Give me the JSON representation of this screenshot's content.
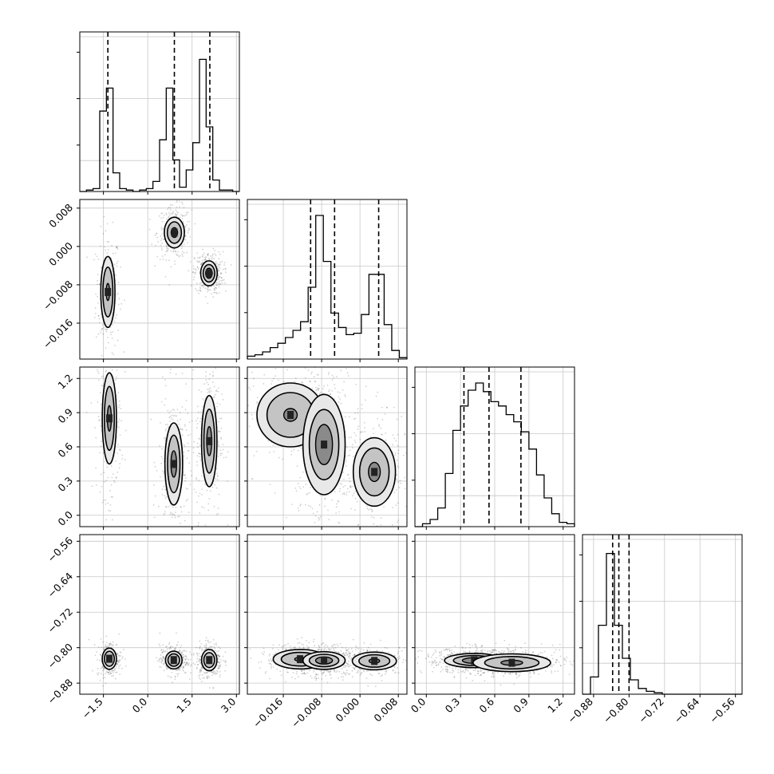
{
  "chart_data": {
    "type": "corner",
    "title": "",
    "parameters": [
      {
        "label": "",
        "range": [
          -2.3,
          3.1
        ],
        "ticks": [
          -1.5,
          0.0,
          1.5,
          3.0
        ],
        "tick_labels": [
          "−1.5",
          "0.0",
          "1.5",
          "3.0"
        ],
        "quantiles": [
          -1.35,
          0.9,
          2.1
        ]
      },
      {
        "label": "",
        "range": [
          -0.0235,
          0.0098
        ],
        "ticks": [
          -0.016,
          -0.008,
          0.0,
          0.008
        ],
        "tick_labels": [
          "−0.016",
          "−0.008",
          "0.000",
          "0.008"
        ],
        "quantiles": [
          -0.0103,
          -0.0053,
          0.0039
        ]
      },
      {
        "label": "",
        "range": [
          -0.1,
          1.3
        ],
        "ticks": [
          0.0,
          0.3,
          0.6,
          0.9,
          1.2
        ],
        "tick_labels": [
          "0.0",
          "0.3",
          "0.6",
          "0.9",
          "1.2"
        ],
        "quantiles": [
          0.33,
          0.55,
          0.83
        ]
      },
      {
        "label": "",
        "range": [
          -0.905,
          -0.545
        ],
        "ticks": [
          -0.88,
          -0.8,
          -0.72,
          -0.64,
          -0.56
        ],
        "tick_labels": [
          "−0.88",
          "−0.80",
          "−0.72",
          "−0.64",
          "−0.56"
        ],
        "quantiles": [
          -0.837,
          -0.823,
          -0.8
        ]
      }
    ],
    "histograms": [
      {
        "parameter": 0,
        "bin_values": [
          0,
          0.01,
          0.02,
          0.56,
          0.72,
          0.13,
          0.02,
          0.01,
          0,
          0.01,
          0.02,
          0.07,
          0.36,
          0.72,
          0.22,
          0.03,
          0.15,
          0.34,
          0.92,
          0.45,
          0.08,
          0.01,
          0.01,
          0
        ]
      },
      {
        "parameter": 1,
        "bin_values": [
          0.02,
          0.03,
          0.05,
          0.08,
          0.11,
          0.15,
          0.2,
          0.26,
          0.5,
          1.0,
          0.68,
          0.32,
          0.22,
          0.17,
          0.18,
          0.31,
          0.59,
          0.59,
          0.24,
          0.06,
          0.01
        ]
      },
      {
        "parameter": 2,
        "bin_values": [
          0.0,
          0.02,
          0.05,
          0.13,
          0.37,
          0.67,
          0.84,
          0.95,
          1.0,
          0.94,
          0.87,
          0.84,
          0.78,
          0.73,
          0.66,
          0.54,
          0.36,
          0.2,
          0.09,
          0.03,
          0.02
        ]
      },
      {
        "parameter": 3,
        "bin_values": [
          0,
          0.12,
          0.48,
          0.98,
          0.48,
          0.25,
          0.1,
          0.04,
          0.02,
          0.01,
          0,
          0,
          0,
          0,
          0,
          0,
          0,
          0,
          0,
          0
        ]
      }
    ],
    "density_clusters": [
      {
        "x": 0,
        "y": 1,
        "modes": [
          {
            "mx": -1.35,
            "my": -0.0095,
            "sx": 0.12,
            "sy": 0.0037,
            "w": 0.6
          },
          {
            "mx": 0.9,
            "my": 0.0029,
            "sx": 0.17,
            "sy": 0.0016,
            "w": 0.8
          },
          {
            "mx": 2.07,
            "my": -0.0056,
            "sx": 0.14,
            "sy": 0.0013,
            "w": 1.0
          }
        ]
      },
      {
        "x": 0,
        "y": 2,
        "modes": [
          {
            "mx": -1.3,
            "my": 0.85,
            "sx": 0.12,
            "sy": 0.2,
            "w": 0.7
          },
          {
            "mx": 0.88,
            "my": 0.45,
            "sx": 0.15,
            "sy": 0.18,
            "w": 0.8
          },
          {
            "mx": 2.08,
            "my": 0.65,
            "sx": 0.13,
            "sy": 0.2,
            "w": 0.8
          }
        ]
      },
      {
        "x": 0,
        "y": 3,
        "modes": [
          {
            "mx": -1.3,
            "my": -0.825,
            "sx": 0.12,
            "sy": 0.012,
            "w": 0.6
          },
          {
            "mx": 0.88,
            "my": -0.828,
            "sx": 0.14,
            "sy": 0.01,
            "w": 0.8
          },
          {
            "mx": 2.08,
            "my": -0.828,
            "sx": 0.13,
            "sy": 0.012,
            "w": 0.8
          }
        ]
      },
      {
        "x": 1,
        "y": 2,
        "modes": [
          {
            "mx": -0.0145,
            "my": 0.88,
            "sx": 0.0035,
            "sy": 0.14,
            "w": 0.5
          },
          {
            "mx": -0.0075,
            "my": 0.62,
            "sx": 0.0022,
            "sy": 0.22,
            "w": 1.0
          },
          {
            "mx": 0.003,
            "my": 0.38,
            "sx": 0.0022,
            "sy": 0.15,
            "w": 0.7
          }
        ]
      },
      {
        "x": 1,
        "y": 3,
        "modes": [
          {
            "mx": -0.0125,
            "my": -0.826,
            "sx": 0.0028,
            "sy": 0.011,
            "w": 0.5
          },
          {
            "mx": -0.0075,
            "my": -0.829,
            "sx": 0.0022,
            "sy": 0.01,
            "w": 1.0
          },
          {
            "mx": 0.003,
            "my": -0.83,
            "sx": 0.0023,
            "sy": 0.01,
            "w": 0.6
          }
        ]
      },
      {
        "x": 2,
        "y": 3,
        "modes": [
          {
            "mx": 0.42,
            "my": -0.829,
            "sx": 0.13,
            "sy": 0.008,
            "w": 1.0
          },
          {
            "mx": 0.75,
            "my": -0.834,
            "sx": 0.17,
            "sy": 0.01,
            "w": 0.7
          }
        ]
      }
    ],
    "contour_levels": [
      0.3,
      0.55,
      0.8
    ],
    "grid": true,
    "quantile_line_style": "dashed"
  }
}
